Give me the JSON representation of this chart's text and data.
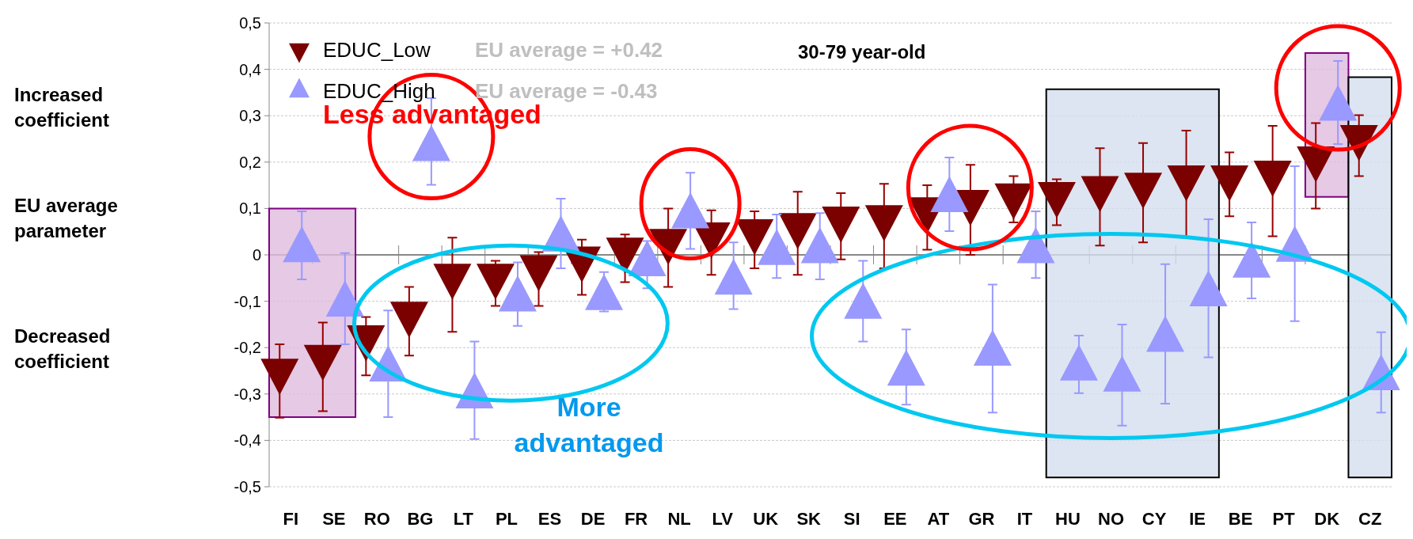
{
  "chart_data": {
    "type": "scatter",
    "categories": [
      "FI",
      "SE",
      "RO",
      "BG",
      "LT",
      "PL",
      "ES",
      "DE",
      "FR",
      "NL",
      "LV",
      "UK",
      "SK",
      "SI",
      "EE",
      "AT",
      "GR",
      "IT",
      "HU",
      "NO",
      "CY",
      "IE",
      "BE",
      "PT",
      "DK",
      "CZ"
    ],
    "series": [
      {
        "name": "EDUC_Low",
        "color": "#7b0000",
        "marker": "triangle-down",
        "values": [
          -0.25,
          -0.22,
          -0.178,
          -0.127,
          -0.045,
          -0.045,
          -0.027,
          -0.008,
          0.011,
          0.03,
          0.044,
          0.051,
          0.064,
          0.078,
          0.081,
          0.098,
          0.114,
          0.128,
          0.131,
          0.144,
          0.151,
          0.167,
          0.167,
          0.177,
          0.208,
          0.254
        ],
        "errors": [
          [
            -0.351,
            -0.193
          ],
          [
            -0.337,
            -0.146
          ],
          [
            -0.26,
            -0.134
          ],
          [
            -0.217,
            -0.069
          ],
          [
            -0.166,
            0.037
          ],
          [
            -0.11,
            -0.013
          ],
          [
            -0.11,
            0.006
          ],
          [
            -0.086,
            0.033
          ],
          [
            -0.059,
            0.044
          ],
          [
            -0.069,
            0.1
          ],
          [
            -0.043,
            0.096
          ],
          [
            -0.029,
            0.094
          ],
          [
            -0.043,
            0.136
          ],
          [
            -0.01,
            0.133
          ],
          [
            -0.029,
            0.153
          ],
          [
            0.011,
            0.15
          ],
          [
            0,
            0.194
          ],
          [
            0.07,
            0.17
          ],
          [
            0.064,
            0.163
          ],
          [
            0.02,
            0.23
          ],
          [
            0.027,
            0.241
          ],
          [
            0.037,
            0.268
          ],
          [
            0.083,
            0.221
          ],
          [
            0.04,
            0.278
          ],
          [
            0.1,
            0.284
          ],
          [
            0.17,
            0.301
          ]
        ]
      },
      {
        "name": "EDUC_High",
        "color": "#9999ff",
        "marker": "triangle",
        "values": [
          0.01,
          -0.107,
          -0.247,
          0.228,
          -0.305,
          -0.096,
          0.033,
          -0.093,
          -0.02,
          0.083,
          -0.06,
          0.004,
          0.008,
          -0.112,
          -0.256,
          0.118,
          -0.213,
          0.008,
          -0.245,
          -0.269,
          -0.183,
          -0.085,
          -0.023,
          0.011,
          0.315,
          -0.266
        ],
        "errors": [
          [
            -0.053,
            0.094
          ],
          [
            -0.193,
            0.004
          ],
          [
            -0.35,
            -0.12
          ],
          [
            0.151,
            0.338
          ],
          [
            -0.397,
            -0.187
          ],
          [
            -0.153,
            -0.016
          ],
          [
            -0.029,
            0.121
          ],
          [
            -0.122,
            -0.037
          ],
          [
            -0.072,
            0.03
          ],
          [
            0.013,
            0.177
          ],
          [
            -0.117,
            0.027
          ],
          [
            -0.05,
            0.087
          ],
          [
            -0.053,
            0.09
          ],
          [
            -0.187,
            -0.013
          ],
          [
            -0.323,
            -0.161
          ],
          [
            0.051,
            0.21
          ],
          [
            -0.34,
            -0.064
          ],
          [
            -0.05,
            0.094
          ],
          [
            -0.298,
            -0.174
          ],
          [
            -0.368,
            -0.15
          ],
          [
            -0.321,
            -0.02
          ],
          [
            -0.221,
            0.077
          ],
          [
            -0.094,
            0.07
          ],
          [
            -0.143,
            0.191
          ],
          [
            0.239,
            0.418
          ],
          [
            -0.34,
            -0.167
          ]
        ]
      }
    ],
    "ylim": [
      -0.5,
      0.5
    ],
    "yticks": [
      {
        "value": -0.5,
        "label": "-0,5"
      },
      {
        "value": -0.4,
        "label": "-0,4"
      },
      {
        "value": -0.3,
        "label": "-0,3"
      },
      {
        "value": -0.2,
        "label": "-0,2"
      },
      {
        "value": -0.1,
        "label": "-0,1"
      },
      0,
      {
        "value": 0.1,
        "label": "0,1"
      },
      {
        "value": 0.2,
        "label": "0,2"
      },
      {
        "value": 0.3,
        "label": "0,3"
      },
      {
        "value": 0.4,
        "label": "0,4"
      },
      {
        "value": 0.5,
        "label": "0,5"
      }
    ],
    "bands": [
      {
        "axis": "x",
        "from": "FI",
        "to": "SE",
        "color": "#dfbcdf"
      },
      {
        "axis": "x",
        "from": "DK",
        "to": "DK",
        "color": "#dfbcdf"
      },
      {
        "axis": "x",
        "from": "HU",
        "to": "IE",
        "color": "#d3deed"
      },
      {
        "axis": "x",
        "from": "CZ",
        "to": "CZ",
        "color": "#d3deed"
      }
    ],
    "grid": "y",
    "legend": "top left",
    "annotations": [
      "EU average = +0.42",
      "EU average = -0.43",
      "30-79 year-old",
      "Less advantaged",
      "More advantaged",
      "Increased coefficient",
      "EU average parameter",
      "Decreased coefficient"
    ]
  }
}
